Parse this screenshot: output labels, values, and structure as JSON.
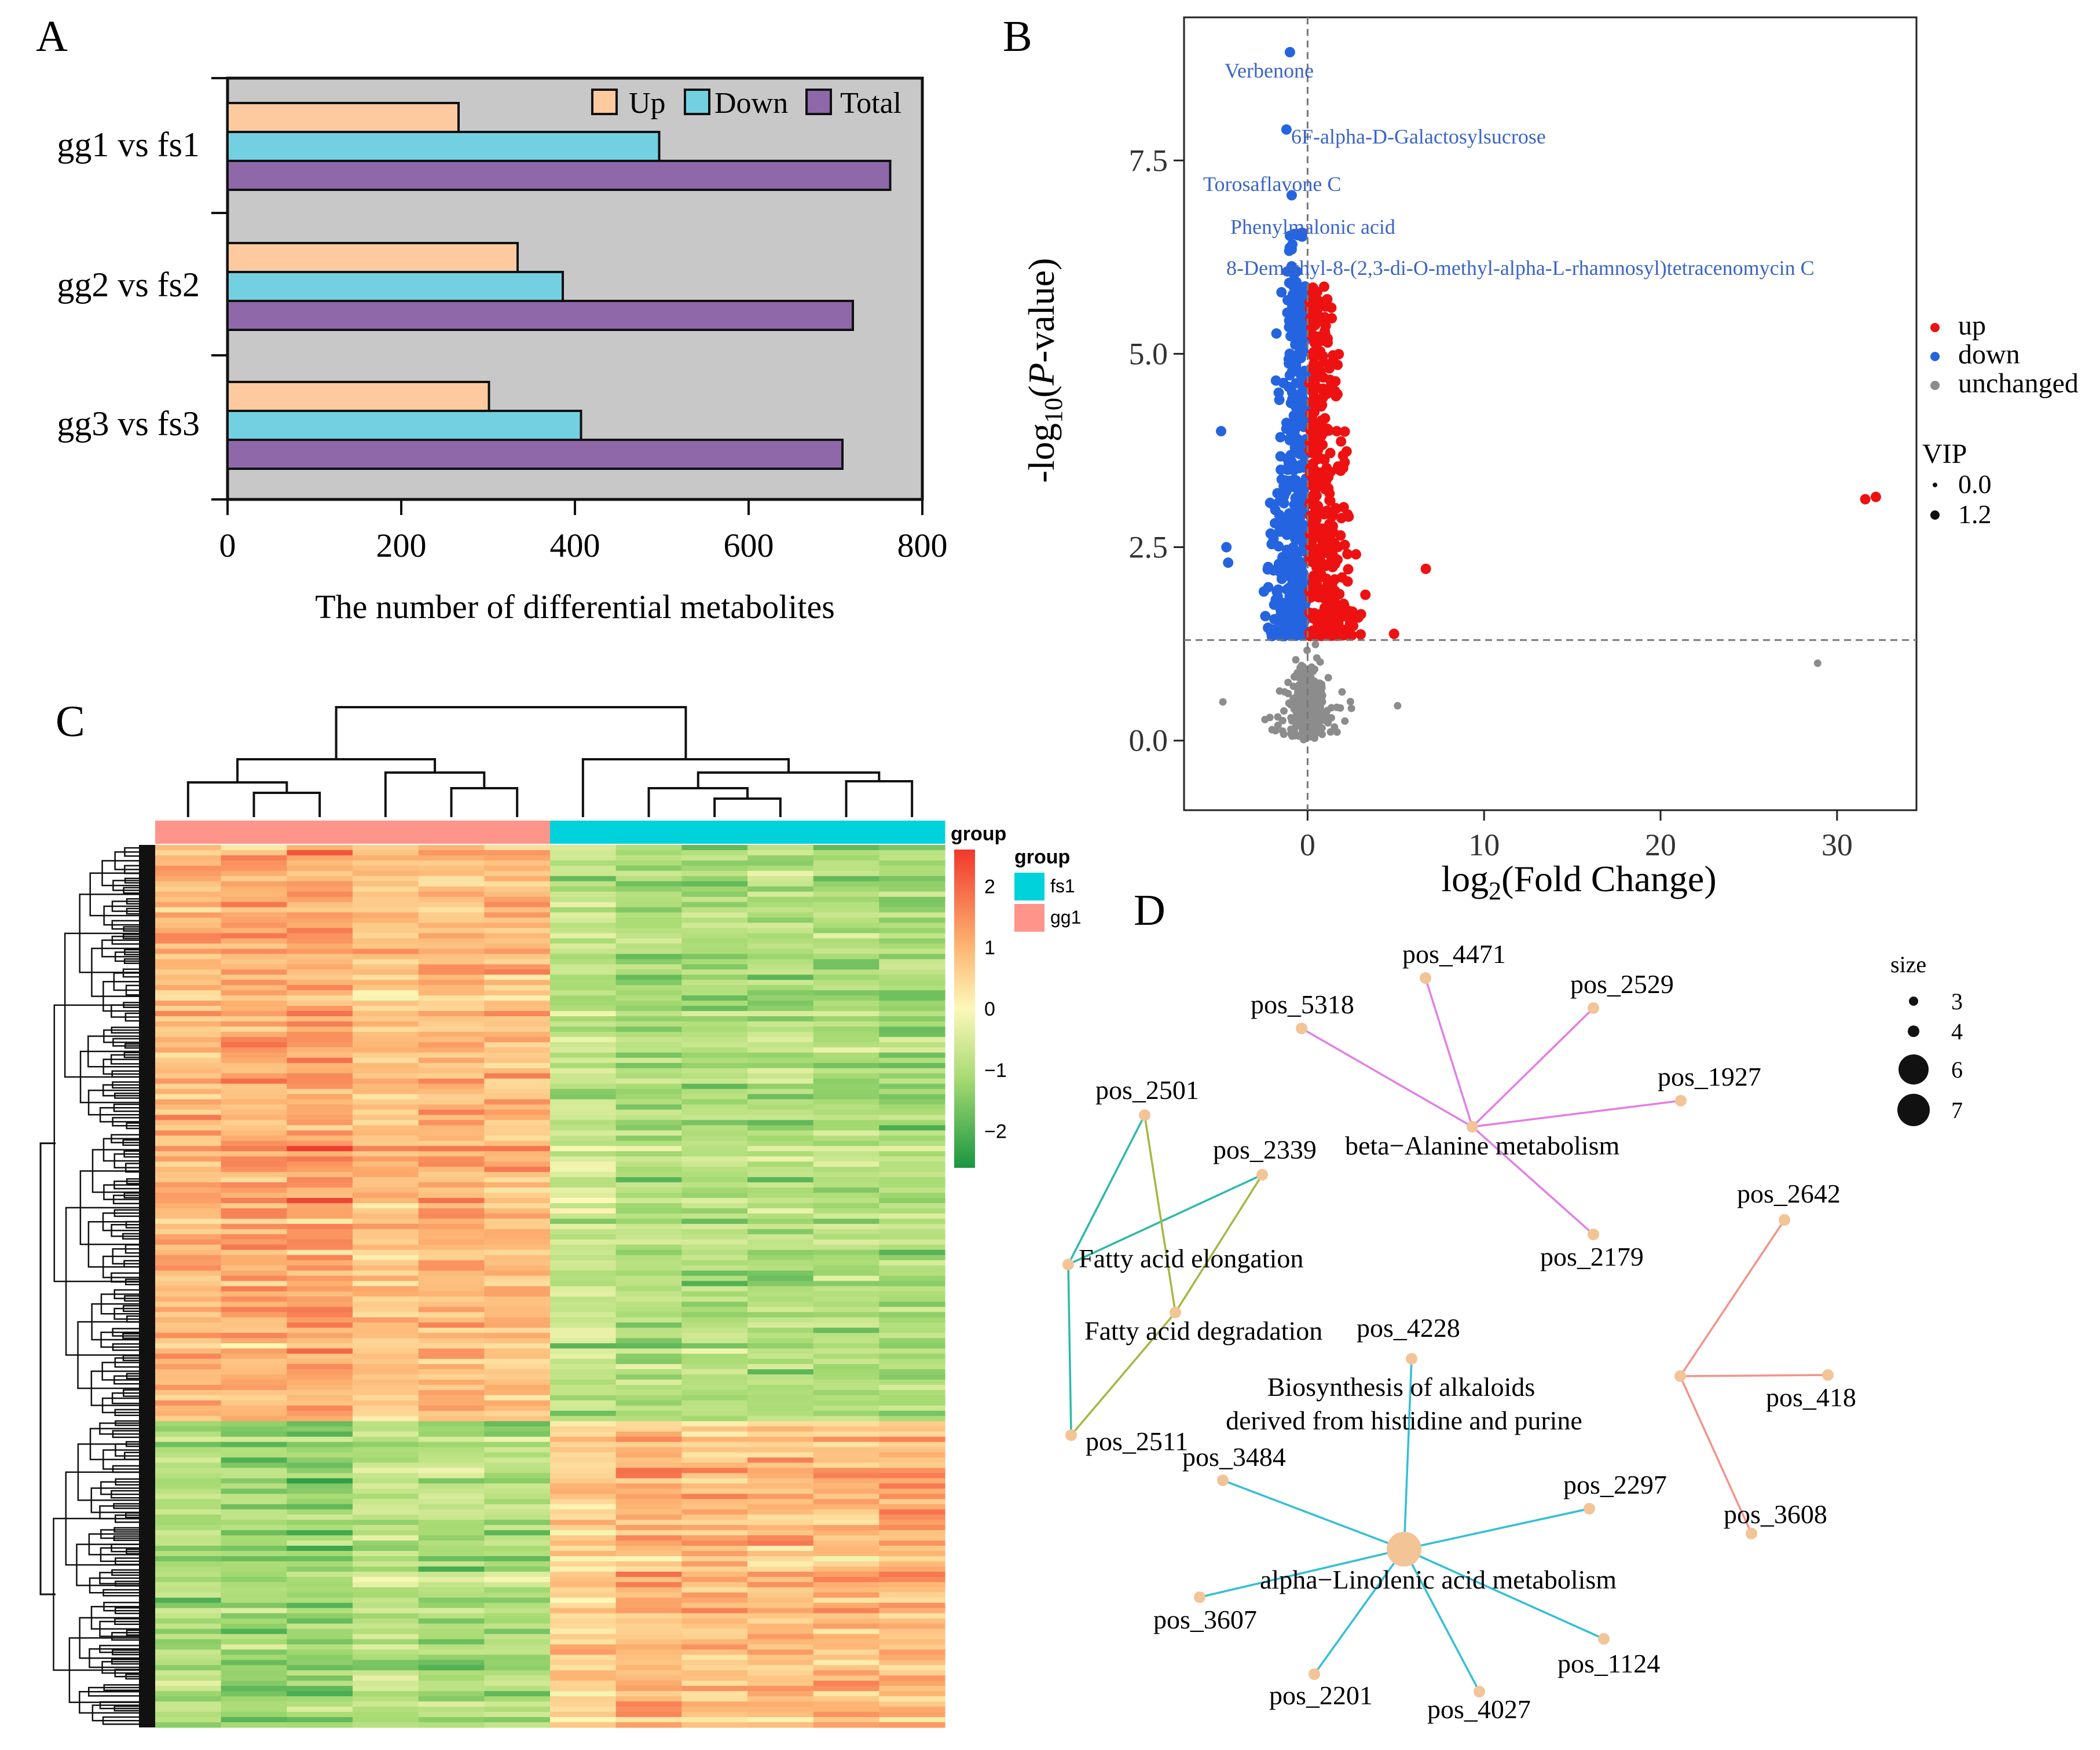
{
  "chart_data": [
    {
      "panel": "A",
      "type": "bar",
      "orientation": "horizontal",
      "categories": [
        "gg1 vs fs1",
        "gg2 vs fs2",
        "gg3 vs fs3"
      ],
      "series": [
        {
          "name": "Up",
          "color": "#fdc99f",
          "values": [
            266,
            334,
            301
          ]
        },
        {
          "name": "Down",
          "color": "#73d0e1",
          "values": [
            497,
            386,
            407
          ]
        },
        {
          "name": "Total",
          "color": "#8e68a9",
          "values": [
            763,
            720,
            708
          ]
        }
      ],
      "xlabel": "The number of differential metabolites",
      "xlim": [
        0,
        800
      ],
      "xticks": [
        "0",
        "200",
        "400",
        "600",
        "800"
      ],
      "background": "#c8c8c8",
      "legend": "top-right"
    },
    {
      "panel": "B",
      "type": "scatter",
      "xlabel": "log2(Fold Change)",
      "ylabel": "-log10(P-value)",
      "xlim": [
        -7,
        34.5
      ],
      "ylim": [
        -0.9,
        9.35
      ],
      "xticks": [
        "0",
        "10",
        "20",
        "30"
      ],
      "yticks": [
        "0.0",
        "2.5",
        "5.0",
        "7.5"
      ],
      "threshold_y": 1.3,
      "threshold_x": 0,
      "colors": {
        "up": "#ee1111",
        "down": "#2564e0",
        "unchanged": "#8c8c8c"
      },
      "legend_title_vip": "VIP",
      "legend_groups": [
        "up",
        "down",
        "unchanged"
      ],
      "legend_vip": [
        "0.0",
        "1.2"
      ],
      "labeled_points": [
        {
          "name": "Verbenone",
          "x": -1.0,
          "y": 8.9
        },
        {
          "name": "6F-alpha-D-Galactosylsucrose",
          "x": -1.2,
          "y": 7.9
        },
        {
          "name": "Torosaflavone C",
          "x": -0.9,
          "y": 7.05
        },
        {
          "name": "Phenylmalonic acid",
          "x": -0.6,
          "y": 6.55
        },
        {
          "name": "8-Demethyl-8-(2,3-di-O-methyl-alpha-L-rhamnosyl)tetracenomycin C",
          "x": -0.9,
          "y": 6.35
        }
      ],
      "extra_points": [
        {
          "group": "up",
          "x": 31.6,
          "y": 3.12
        },
        {
          "group": "up",
          "x": 32.2,
          "y": 3.15
        },
        {
          "group": "up",
          "x": 6.7,
          "y": 2.22
        },
        {
          "group": "up",
          "x": 4.9,
          "y": 1.38
        },
        {
          "group": "down",
          "x": -4.9,
          "y": 4.0
        },
        {
          "group": "down",
          "x": -4.6,
          "y": 2.5
        },
        {
          "group": "down",
          "x": -4.5,
          "y": 2.3
        },
        {
          "group": "unchanged",
          "x": 28.9,
          "y": 1.0
        },
        {
          "group": "unchanged",
          "x": 5.1,
          "y": 0.45
        },
        {
          "group": "unchanged",
          "x": -4.8,
          "y": 0.5
        }
      ],
      "note": "bulk points: up ~370 (x 0..4.5, y 1.3..6), down ~400 (x -4.5..0, y 1.3..6.5), unchanged ~600 near x=0 below y=1.3"
    },
    {
      "panel": "C",
      "type": "heatmap",
      "columns_groups": [
        "gg1",
        "gg1",
        "gg1",
        "gg1",
        "gg1",
        "gg1",
        "fs1",
        "fs1",
        "fs1",
        "fs1",
        "fs1",
        "fs1"
      ],
      "colorbar_ticks": [
        "2",
        "1",
        "0",
        "−1",
        "−2"
      ],
      "colorbar_range": [
        -2.6,
        2.6
      ],
      "legend_title": "group",
      "legend_entries": [
        {
          "label": "fs1",
          "color": "#00d2dc"
        },
        {
          "label": "gg1",
          "color": "#ff948a"
        }
      ],
      "n_rows": 763,
      "row_blocks": [
        {
          "name": "up-in-gg1",
          "fraction": 0.65,
          "gg1_mean": 0.95,
          "fs1_mean": -1.15
        },
        {
          "name": "up-in-fs1",
          "fraction": 0.35,
          "gg1_mean": -1.1,
          "fs1_mean": 0.95
        }
      ]
    },
    {
      "panel": "D",
      "type": "network",
      "node_color": "#f2c496",
      "size_legend_title": "size",
      "size_legend": [
        "3",
        "4",
        "6",
        "7"
      ],
      "pathways": [
        {
          "name": "beta−Alanine metabolism",
          "size": 3,
          "color": "#e27ee6",
          "members": [
            "pos_4471",
            "pos_2529",
            "pos_5318",
            "pos_1927",
            "pos_2179"
          ]
        },
        {
          "name": "Fatty acid elongation",
          "size": 3,
          "color": "#2bbaa7",
          "members": [
            "pos_2501",
            "pos_2339",
            "pos_2511"
          ]
        },
        {
          "name": "Fatty acid degradation",
          "size": 3,
          "color": "#a6b642",
          "members": [
            "pos_2501",
            "pos_2339",
            "pos_2511"
          ]
        },
        {
          "name": "Biosynthesis of alkaloids\nderived from histidine and purine",
          "size": 3,
          "color": "#33bfd4",
          "members": [
            "pos_4228"
          ]
        },
        {
          "name": "alpha−Linolenic acid metabolism",
          "size": 7,
          "color": "#33bfd4",
          "members": [
            "pos_3484",
            "pos_2297",
            "pos_3607",
            "pos_1124",
            "pos_2201",
            "pos_4027"
          ]
        },
        {
          "name": "",
          "size": 3,
          "color": "#f3938a",
          "members": [
            "pos_2642",
            "pos_418",
            "pos_3608"
          ]
        }
      ]
    }
  ],
  "panel_labels": [
    "A",
    "B",
    "C",
    "D"
  ]
}
